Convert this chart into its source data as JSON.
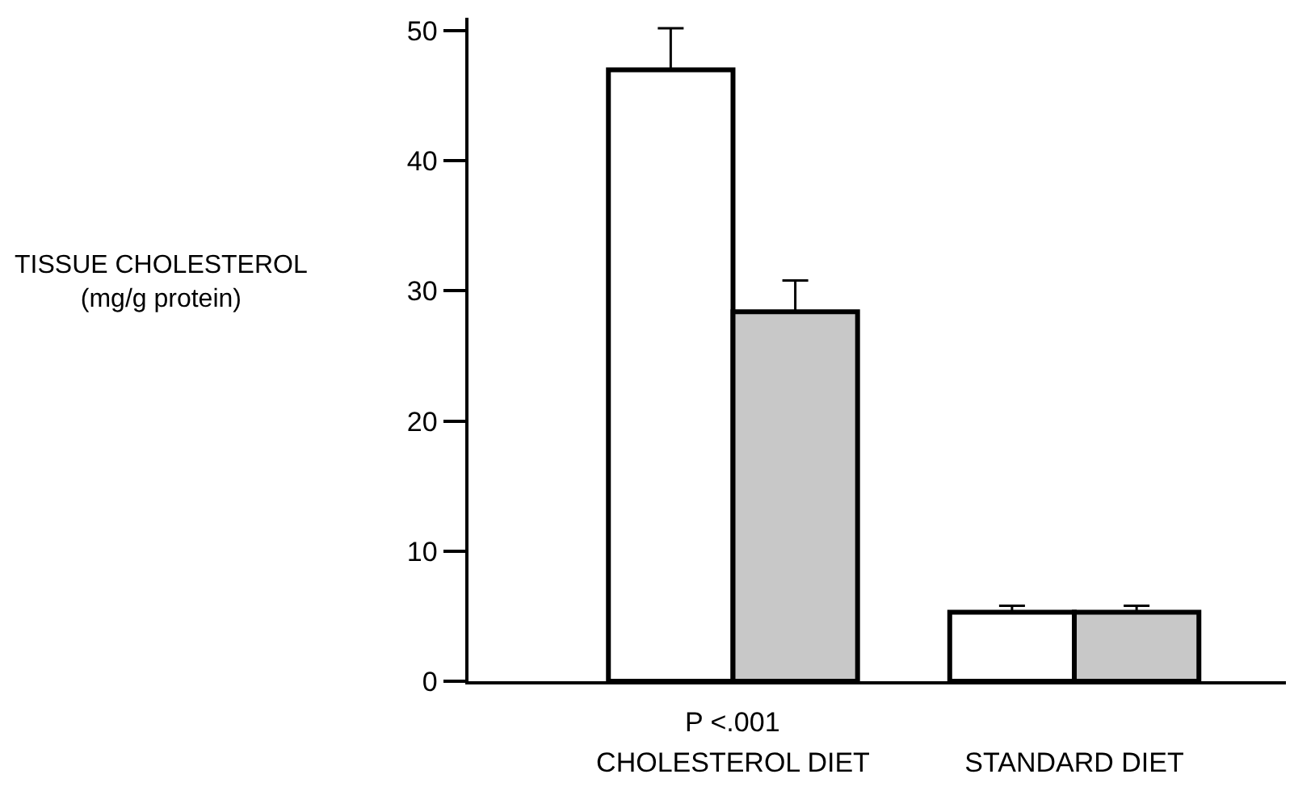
{
  "chart_data": {
    "type": "bar",
    "categories": [
      "CHOLESTEROL DIET",
      "STANDARD DIET"
    ],
    "series": [
      {
        "color": "#ffffff",
        "values": [
          47.0,
          5.3
        ],
        "errors": [
          [
            47.0,
            50.2
          ],
          [
            5.3,
            5.8
          ]
        ]
      },
      {
        "color": "#c8c8c8",
        "values": [
          28.4,
          5.3
        ],
        "errors": [
          [
            28.4,
            30.8
          ],
          [
            5.3,
            5.8
          ]
        ]
      }
    ],
    "ylim": [
      0,
      51
    ],
    "yticks": [
      0,
      10,
      20,
      30,
      40,
      50
    ],
    "annotations": [
      "TISSUE CHOLESTEROL\n(mg/g protein)",
      "P <.001"
    ]
  }
}
